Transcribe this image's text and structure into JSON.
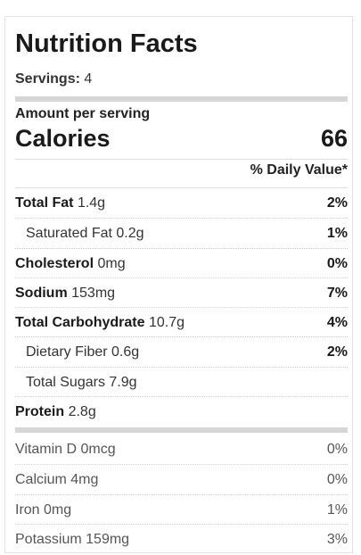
{
  "title": "Nutrition Facts",
  "servings": {
    "label": "Servings:",
    "value": "4"
  },
  "amount_per_serving": "Amount per serving",
  "calories": {
    "label": "Calories",
    "value": "66"
  },
  "daily_value_header": "% Daily Value*",
  "nutrients": [
    {
      "name": "Total Fat",
      "amount": "1.4g",
      "pct": "2%"
    },
    {
      "name": "Saturated Fat",
      "amount": "0.2g",
      "pct": "1%"
    },
    {
      "name": "Cholesterol",
      "amount": "0mg",
      "pct": "0%"
    },
    {
      "name": "Sodium",
      "amount": "153mg",
      "pct": "7%"
    },
    {
      "name": "Total Carbohydrate",
      "amount": "10.7g",
      "pct": "4%"
    },
    {
      "name": "Dietary Fiber",
      "amount": "0.6g",
      "pct": "2%"
    },
    {
      "name": "Total Sugars",
      "amount": "7.9g",
      "pct": ""
    },
    {
      "name": "Protein",
      "amount": "2.8g",
      "pct": ""
    }
  ],
  "vitamins": [
    {
      "name": "Vitamin D",
      "amount": "0mcg",
      "pct": "0%"
    },
    {
      "name": "Calcium",
      "amount": "4mg",
      "pct": "0%"
    },
    {
      "name": "Iron",
      "amount": "0mg",
      "pct": "1%"
    },
    {
      "name": "Potassium",
      "amount": "159mg",
      "pct": "3%"
    }
  ]
}
